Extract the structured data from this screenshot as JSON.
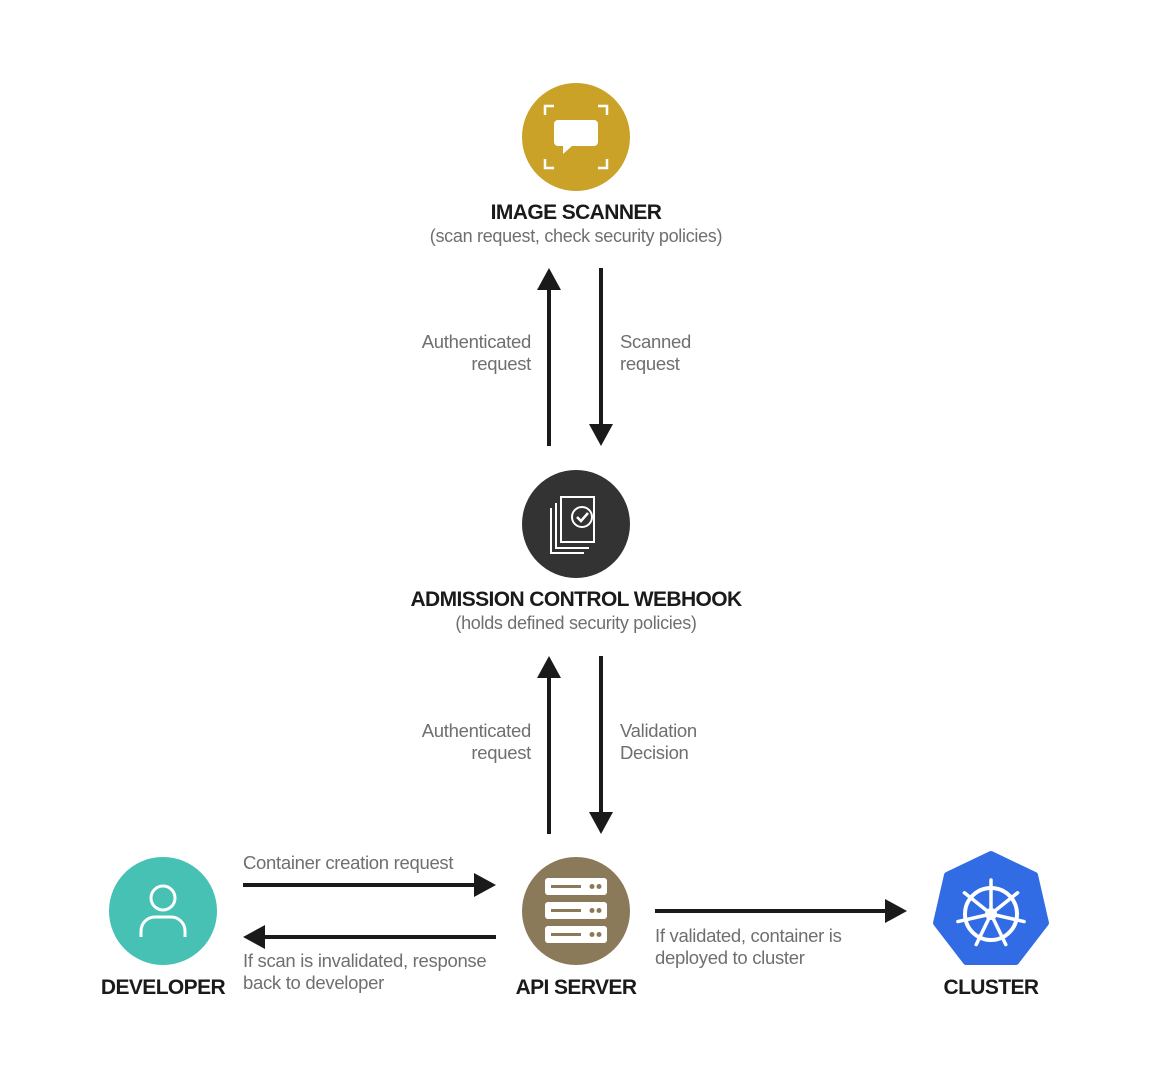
{
  "nodes": {
    "image_scanner": {
      "title": "IMAGE SCANNER",
      "subtitle": "(scan request, check security policies)",
      "color": "#c9a227",
      "icon": "scanner-chat-icon"
    },
    "admission": {
      "title": "ADMISSION CONTROL WEBHOOK",
      "subtitle": "(holds defined security policies)",
      "color": "#333333",
      "icon": "documents-check-icon"
    },
    "api_server": {
      "title": "API SERVER",
      "color": "#8b7a5a",
      "icon": "server-rack-icon"
    },
    "developer": {
      "title": "DEVELOPER",
      "color": "#46c1b3",
      "icon": "user-icon"
    },
    "cluster": {
      "title": "CLUSTER",
      "color": "#326ce5",
      "icon": "kubernetes-helm-icon"
    }
  },
  "edges": {
    "scanner_up": {
      "line1": "Authenticated",
      "line2": "request"
    },
    "scanner_down": {
      "line1": "Scanned",
      "line2": "request"
    },
    "webhook_up": {
      "line1": "Authenticated",
      "line2": "request"
    },
    "webhook_down": {
      "line1": "Validation",
      "line2": "Decision"
    },
    "dev_to_api": {
      "line1": "Container creation request"
    },
    "api_to_dev": {
      "line1": "If scan is invalidated, response",
      "line2": "back to developer"
    },
    "api_to_cluster": {
      "line1": "If validated, container is",
      "line2": "deployed to cluster"
    }
  }
}
